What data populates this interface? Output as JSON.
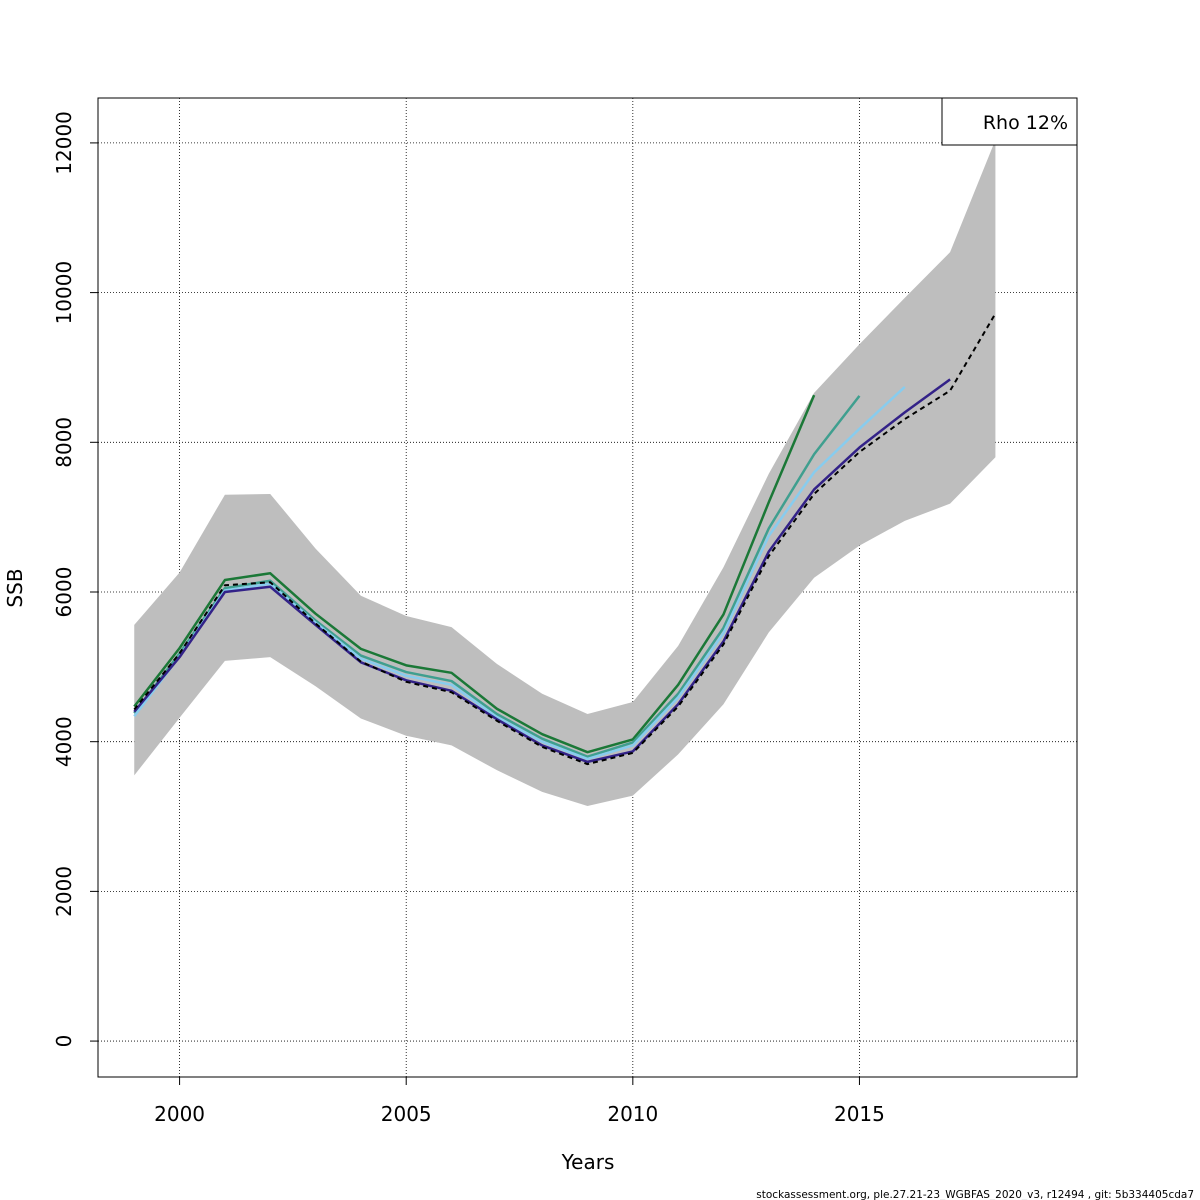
{
  "chart_data": {
    "type": "line",
    "title": "",
    "xlabel": "Years",
    "ylabel": "SSB",
    "xlim": [
      1998.2,
      2019.8
    ],
    "ylim": [
      -480,
      12600
    ],
    "x_ticks": [
      2000,
      2005,
      2010,
      2015
    ],
    "y_ticks": [
      0,
      2000,
      4000,
      6000,
      8000,
      10000,
      12000
    ],
    "grid": true,
    "legend": {
      "position": "top-right",
      "text": "Rho 12%"
    },
    "footer": "stockassessment.org, ple.27.21-23_WGBFAS_2020_v3, r12494 , git: 5b334405cda7",
    "confidence_band": {
      "color": "#bebebe",
      "x": [
        1999,
        2000,
        2001,
        2002,
        2003,
        2004,
        2005,
        2006,
        2007,
        2008,
        2009,
        2010,
        2011,
        2012,
        2013,
        2014,
        2015,
        2016,
        2017,
        2018
      ],
      "lower": [
        3550,
        4320,
        5080,
        5130,
        4740,
        4310,
        4080,
        3950,
        3620,
        3330,
        3140,
        3280,
        3830,
        4500,
        5460,
        6190,
        6620,
        6950,
        7180,
        7800
      ],
      "upper": [
        5560,
        6260,
        7300,
        7310,
        6580,
        5950,
        5680,
        5530,
        5040,
        4640,
        4370,
        4530,
        5280,
        6330,
        7580,
        8660,
        9310,
        9930,
        10540,
        12040
      ]
    },
    "series": [
      {
        "color": "#1b7837",
        "width": 2.5,
        "dash": "",
        "x": [
          1999,
          2000,
          2001,
          2002,
          2003,
          2004,
          2005,
          2006,
          2007,
          2008,
          2009,
          2010,
          2011,
          2012,
          2013,
          2014
        ],
        "values": [
          4470,
          5250,
          6160,
          6250,
          5710,
          5240,
          5020,
          4920,
          4440,
          4100,
          3860,
          4030,
          4760,
          5700,
          7200,
          8630
        ]
      },
      {
        "color": "#3f9f8f",
        "width": 2.5,
        "dash": "",
        "x": [
          1999,
          2000,
          2001,
          2002,
          2003,
          2004,
          2005,
          2006,
          2007,
          2008,
          2009,
          2010,
          2011,
          2012,
          2013,
          2014,
          2015
        ],
        "values": [
          4380,
          5180,
          6050,
          6150,
          5620,
          5150,
          4930,
          4810,
          4370,
          4040,
          3800,
          3990,
          4640,
          5520,
          6850,
          7840,
          8620
        ]
      },
      {
        "color": "#88ccee",
        "width": 2.5,
        "dash": "",
        "x": [
          1999,
          2000,
          2001,
          2002,
          2003,
          2004,
          2005,
          2006,
          2007,
          2008,
          2009,
          2010,
          2011,
          2012,
          2013,
          2014,
          2015,
          2016
        ],
        "values": [
          4340,
          5140,
          6020,
          6110,
          5590,
          5110,
          4880,
          4760,
          4330,
          4000,
          3770,
          3950,
          4590,
          5450,
          6750,
          7600,
          8180,
          8740
        ]
      },
      {
        "color": "#332288",
        "width": 2.5,
        "dash": "",
        "x": [
          1999,
          2000,
          2001,
          2002,
          2003,
          2004,
          2005,
          2006,
          2007,
          2008,
          2009,
          2010,
          2011,
          2012,
          2013,
          2014,
          2015,
          2016,
          2017
        ],
        "values": [
          4400,
          5130,
          6000,
          6070,
          5560,
          5060,
          4820,
          4680,
          4300,
          3950,
          3730,
          3870,
          4500,
          5340,
          6540,
          7370,
          7930,
          8400,
          8840
        ]
      },
      {
        "color": "#000000",
        "width": 2,
        "dash": "5,4",
        "x": [
          1999,
          2000,
          2001,
          2002,
          2003,
          2004,
          2005,
          2006,
          2007,
          2008,
          2009,
          2010,
          2011,
          2012,
          2013,
          2014,
          2015,
          2016,
          2017,
          2018
        ],
        "values": [
          4430,
          5180,
          6090,
          6130,
          5580,
          5070,
          4800,
          4660,
          4280,
          3930,
          3700,
          3850,
          4470,
          5300,
          6480,
          7310,
          7870,
          8310,
          8690,
          9720
        ]
      }
    ]
  }
}
